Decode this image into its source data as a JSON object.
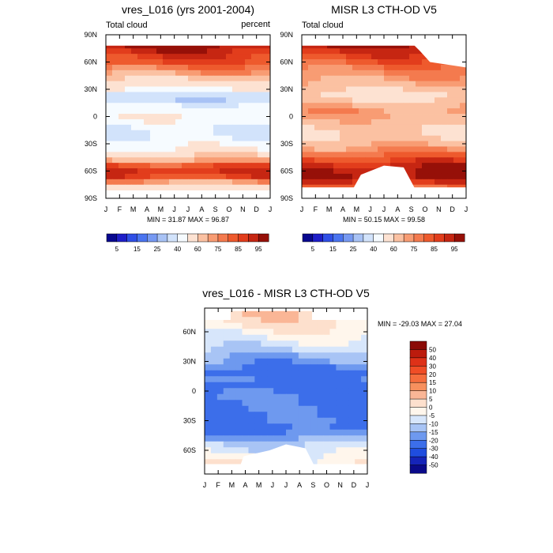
{
  "panels": [
    {
      "title": "vres_L016 (yrs 2001-2004)",
      "left_string": "Total cloud",
      "right_string": "percent",
      "y_ticks": [
        "90N",
        "60N",
        "30N",
        "0",
        "30S",
        "60S",
        "90S"
      ],
      "x_ticks": [
        "J",
        "F",
        "M",
        "A",
        "M",
        "J",
        "J",
        "A",
        "S",
        "O",
        "N",
        "D",
        "J"
      ],
      "stats": "MIN =  31.87 MAX =  96.87"
    },
    {
      "title": "MISR L3 CTH-OD V5",
      "left_string": "Total cloud",
      "right_string": "",
      "y_ticks": [
        "90N",
        "60N",
        "30N",
        "0",
        "30S",
        "60S",
        "90S"
      ],
      "x_ticks": [
        "J",
        "F",
        "M",
        "A",
        "M",
        "J",
        "J",
        "A",
        "S",
        "O",
        "N",
        "D",
        "J"
      ],
      "stats": "MIN =  50.15 MAX =  99.58"
    },
    {
      "title": "vres_L016 - MISR L3 CTH-OD V5",
      "left_string": "",
      "right_string": "",
      "y_ticks": [
        "60N",
        "30N",
        "0",
        "30S",
        "60S"
      ],
      "x_ticks": [
        "J",
        "F",
        "M",
        "A",
        "M",
        "J",
        "J",
        "A",
        "S",
        "O",
        "N",
        "D",
        "J"
      ],
      "stats": "MIN = -29.03 MAX =  27.04"
    }
  ],
  "colorbar_abs": {
    "labels": [
      "5",
      "15",
      "25",
      "40",
      "60",
      "75",
      "85",
      "95"
    ],
    "colors": [
      "#08088f",
      "#1e1ec8",
      "#2f4fe6",
      "#4a74f0",
      "#7699f2",
      "#a8c2f5",
      "#d2e3fb",
      "#f6fbff",
      "#fde2d2",
      "#fbc1a2",
      "#f89c73",
      "#f47a4e",
      "#ee5a2d",
      "#e23d1c",
      "#c62612",
      "#961008"
    ]
  },
  "colorbar_diff": {
    "labels": [
      "50",
      "40",
      "30",
      "20",
      "15",
      "10",
      "5",
      "0",
      "-5",
      "-10",
      "-15",
      "-20",
      "-30",
      "-40",
      "-50"
    ],
    "colors": [
      "#8b0b06",
      "#bc1b0d",
      "#de3118",
      "#f04d26",
      "#f56d3d",
      "#f7905e",
      "#fab696",
      "#fde0cd",
      "#fff6ec",
      "#d7e6fb",
      "#a8c4f5",
      "#6e99ef",
      "#3c6eea",
      "#1f4ddf",
      "#1524b9",
      "#0a0a8a"
    ]
  },
  "chart_data": [
    {
      "type": "heatmap",
      "title": "vres_L016 (yrs 2001-2004)",
      "variable": "Total cloud",
      "units": "percent",
      "x": [
        "J",
        "F",
        "M",
        "A",
        "M",
        "J",
        "J",
        "A",
        "S",
        "O",
        "N",
        "D",
        "J"
      ],
      "xlabel": "",
      "ylabel": "",
      "ylim": [
        -90,
        90
      ],
      "y_ticks": [
        90,
        60,
        30,
        0,
        -30,
        -60,
        -90
      ],
      "contour_levels": [
        5,
        10,
        15,
        20,
        25,
        30,
        40,
        50,
        60,
        70,
        75,
        80,
        85,
        90,
        95
      ],
      "min": 31.87,
      "max": 96.87,
      "zonal_profile": [
        {
          "lat": 84,
          "value": 0
        },
        {
          "lat": 78,
          "value": 96
        },
        {
          "lat": 72,
          "value": 92
        },
        {
          "lat": 66,
          "value": 88
        },
        {
          "lat": 60,
          "value": 85
        },
        {
          "lat": 54,
          "value": 78
        },
        {
          "lat": 48,
          "value": 72
        },
        {
          "lat": 42,
          "value": 62
        },
        {
          "lat": 36,
          "value": 55
        },
        {
          "lat": 30,
          "value": 48
        },
        {
          "lat": 24,
          "value": 35
        },
        {
          "lat": 18,
          "value": 33
        },
        {
          "lat": 12,
          "value": 42
        },
        {
          "lat": 6,
          "value": 45
        },
        {
          "lat": 0,
          "value": 48
        },
        {
          "lat": -6,
          "value": 46
        },
        {
          "lat": -12,
          "value": 40
        },
        {
          "lat": -18,
          "value": 38
        },
        {
          "lat": -24,
          "value": 40
        },
        {
          "lat": -30,
          "value": 46
        },
        {
          "lat": -36,
          "value": 50
        },
        {
          "lat": -42,
          "value": 58
        },
        {
          "lat": -48,
          "value": 70
        },
        {
          "lat": -54,
          "value": 84
        },
        {
          "lat": -60,
          "value": 90
        },
        {
          "lat": -66,
          "value": 86
        },
        {
          "lat": -72,
          "value": 72
        },
        {
          "lat": -78,
          "value": 55
        }
      ]
    },
    {
      "type": "heatmap",
      "title": "MISR L3 CTH-OD V5",
      "variable": "Total cloud",
      "units": "",
      "x": [
        "J",
        "F",
        "M",
        "A",
        "M",
        "J",
        "J",
        "A",
        "S",
        "O",
        "N",
        "D",
        "J"
      ],
      "xlabel": "",
      "ylabel": "",
      "ylim": [
        -90,
        90
      ],
      "y_ticks": [
        90,
        60,
        30,
        0,
        -30,
        -60,
        -90
      ],
      "contour_levels": [
        5,
        10,
        15,
        20,
        25,
        30,
        40,
        50,
        60,
        70,
        75,
        80,
        85,
        90,
        95
      ],
      "min": 50.15,
      "max": 99.58,
      "zonal_profile": [
        {
          "lat": 84,
          "value": 0
        },
        {
          "lat": 78,
          "value": 95
        },
        {
          "lat": 72,
          "value": 90
        },
        {
          "lat": 66,
          "value": 86
        },
        {
          "lat": 60,
          "value": 82
        },
        {
          "lat": 54,
          "value": 78
        },
        {
          "lat": 48,
          "value": 75
        },
        {
          "lat": 42,
          "value": 72
        },
        {
          "lat": 36,
          "value": 68
        },
        {
          "lat": 30,
          "value": 62
        },
        {
          "lat": 24,
          "value": 56
        },
        {
          "lat": 18,
          "value": 60
        },
        {
          "lat": 12,
          "value": 68
        },
        {
          "lat": 6,
          "value": 72
        },
        {
          "lat": 0,
          "value": 70
        },
        {
          "lat": -6,
          "value": 66
        },
        {
          "lat": -12,
          "value": 62
        },
        {
          "lat": -18,
          "value": 60
        },
        {
          "lat": -24,
          "value": 62
        },
        {
          "lat": -30,
          "value": 68
        },
        {
          "lat": -36,
          "value": 74
        },
        {
          "lat": -42,
          "value": 80
        },
        {
          "lat": -48,
          "value": 86
        },
        {
          "lat": -54,
          "value": 92
        },
        {
          "lat": -60,
          "value": 95
        },
        {
          "lat": -66,
          "value": 97
        },
        {
          "lat": -72,
          "value": 90
        },
        {
          "lat": -78,
          "value": 80
        }
      ]
    },
    {
      "type": "heatmap",
      "title": "vres_L016 - MISR L3 CTH-OD V5",
      "variable": "difference",
      "units": "",
      "x": [
        "J",
        "F",
        "M",
        "A",
        "M",
        "J",
        "J",
        "A",
        "S",
        "O",
        "N",
        "D",
        "J"
      ],
      "xlabel": "",
      "ylabel": "",
      "ylim": [
        -84,
        84
      ],
      "y_ticks": [
        60,
        30,
        0,
        -30,
        -60
      ],
      "contour_levels": [
        -50,
        -40,
        -30,
        -20,
        -15,
        -10,
        -5,
        0,
        5,
        10,
        15,
        20,
        30,
        40,
        50
      ],
      "min": -29.03,
      "max": 27.04,
      "zonal_profile": [
        {
          "lat": 78,
          "value": 3
        },
        {
          "lat": 72,
          "value": 2
        },
        {
          "lat": 66,
          "value": 1
        },
        {
          "lat": 60,
          "value": -2
        },
        {
          "lat": 54,
          "value": -4
        },
        {
          "lat": 48,
          "value": -7
        },
        {
          "lat": 42,
          "value": -10
        },
        {
          "lat": 36,
          "value": -14
        },
        {
          "lat": 30,
          "value": -17
        },
        {
          "lat": 24,
          "value": -21
        },
        {
          "lat": 18,
          "value": -25
        },
        {
          "lat": 12,
          "value": -22
        },
        {
          "lat": 6,
          "value": -24
        },
        {
          "lat": 0,
          "value": -22
        },
        {
          "lat": -6,
          "value": -20
        },
        {
          "lat": -12,
          "value": -22
        },
        {
          "lat": -18,
          "value": -21
        },
        {
          "lat": -24,
          "value": -22
        },
        {
          "lat": -30,
          "value": -21
        },
        {
          "lat": -36,
          "value": -23
        },
        {
          "lat": -42,
          "value": -20
        },
        {
          "lat": -48,
          "value": -16
        },
        {
          "lat": -54,
          "value": -10
        },
        {
          "lat": -60,
          "value": -8
        },
        {
          "lat": -66,
          "value": -4
        },
        {
          "lat": -72,
          "value": -2
        },
        {
          "lat": -78,
          "value": 0
        }
      ]
    }
  ]
}
